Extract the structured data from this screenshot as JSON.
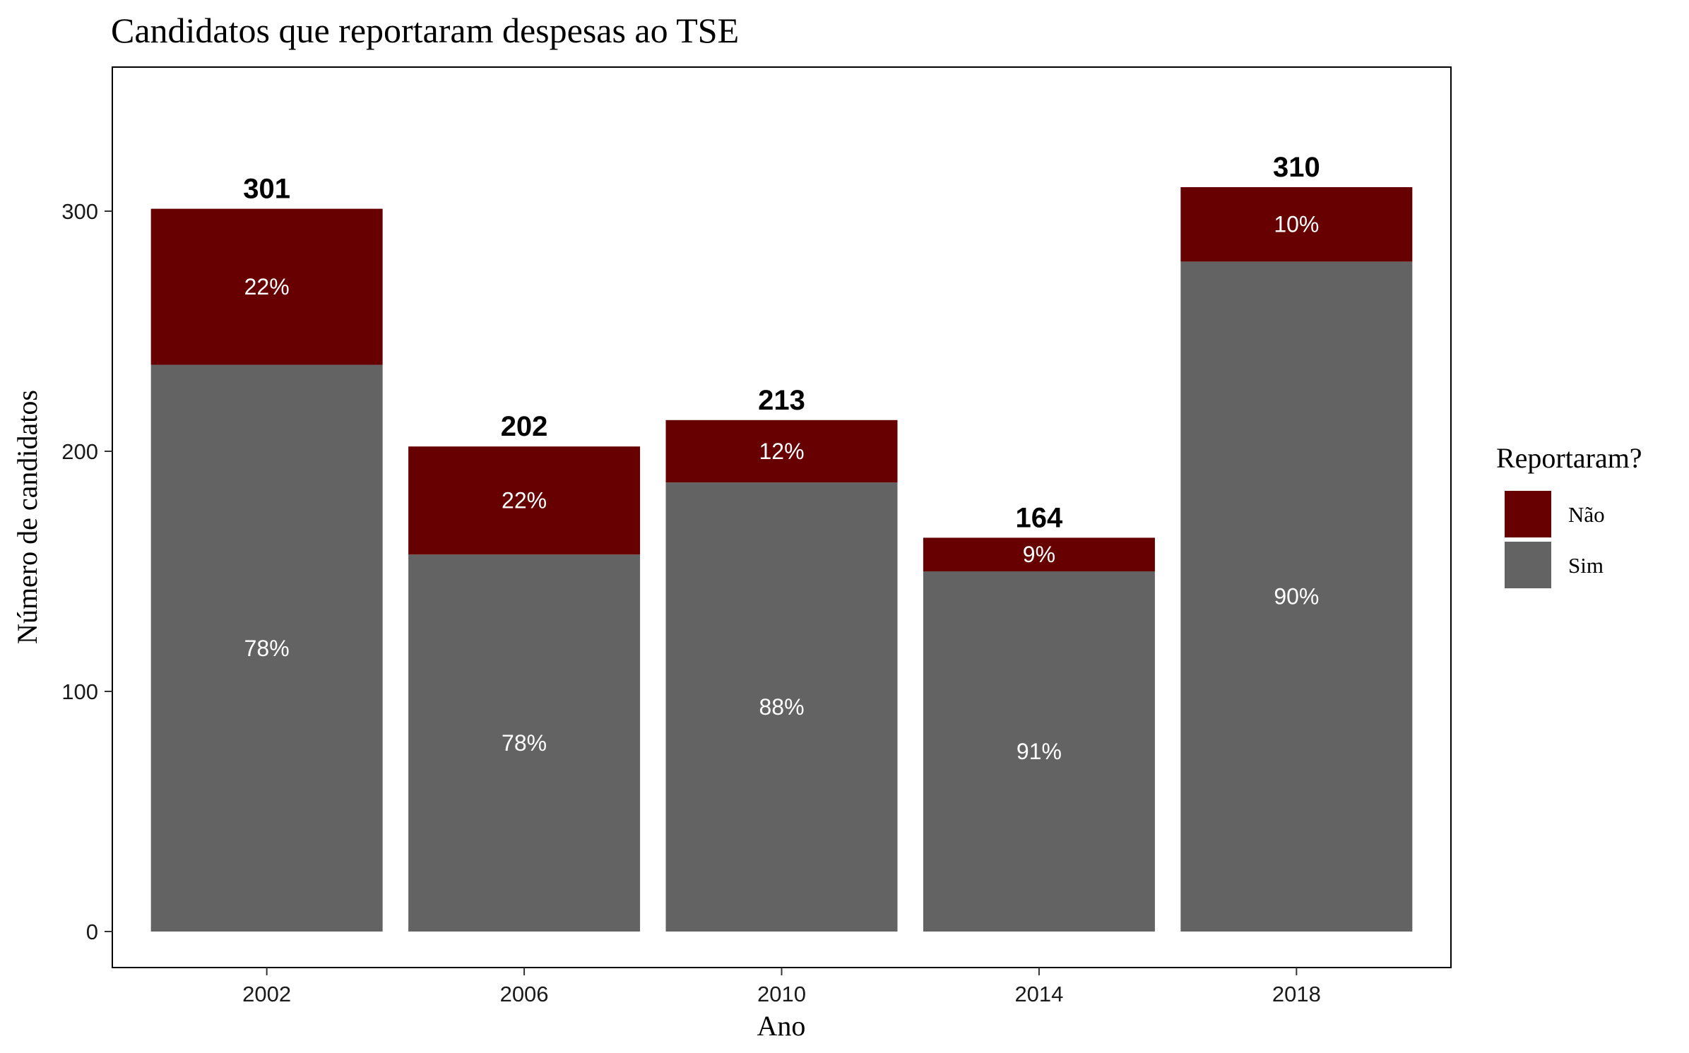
{
  "chart_data": {
    "type": "bar",
    "stacked": true,
    "title": "Candidatos que reportaram despesas ao TSE",
    "xlabel": "Ano",
    "ylabel": "Número de candidatos",
    "categories": [
      "2002",
      "2006",
      "2010",
      "2014",
      "2018"
    ],
    "ylim": [
      -15,
      360
    ],
    "yticks": [
      0,
      100,
      200,
      300
    ],
    "series": [
      {
        "name": "Sim",
        "color": "#636363",
        "values": [
          236,
          157,
          187,
          150,
          279
        ],
        "labels": [
          "78%",
          "78%",
          "88%",
          "91%",
          "90%"
        ]
      },
      {
        "name": "Não",
        "color": "#670000",
        "values": [
          65,
          45,
          26,
          14,
          31
        ],
        "labels": [
          "22%",
          "22%",
          "12%",
          "9%",
          "10%"
        ]
      }
    ],
    "totals": [
      "301",
      "202",
      "213",
      "164",
      "310"
    ],
    "legend": {
      "title": "Reportaram?",
      "position": "right",
      "entries": [
        {
          "label": "Não",
          "color": "#670000"
        },
        {
          "label": "Sim",
          "color": "#636363"
        }
      ]
    },
    "grid": false
  }
}
